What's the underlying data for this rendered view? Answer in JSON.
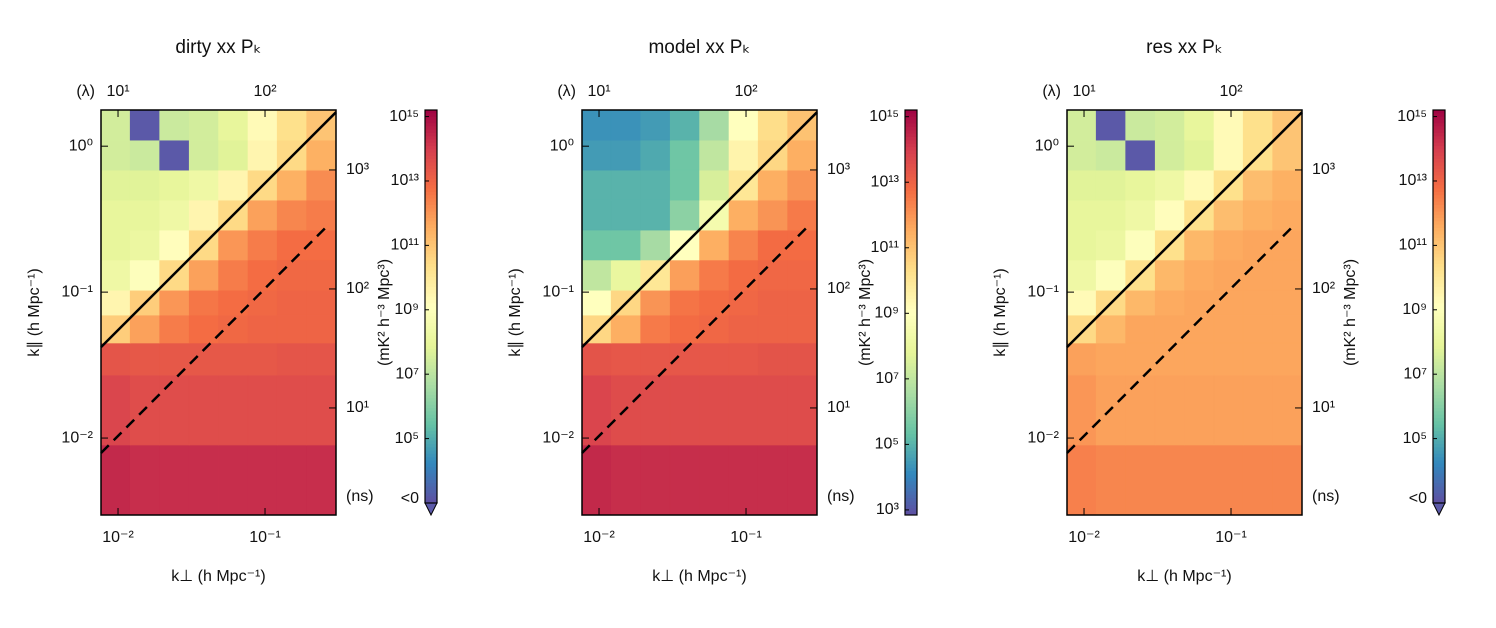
{
  "chart_data": [
    {
      "type": "heatmap",
      "title": "dirty xx Pₖ",
      "x_label": "k⊥ (h Mpc⁻¹)",
      "y_label": "k∥ (h Mpc⁻¹)",
      "log_scale": true,
      "xlim": [
        0.00766,
        0.304
      ],
      "xticks": [
        {
          "value": 0.01,
          "label": "10⁻²"
        },
        {
          "value": 0.1,
          "label": "10⁻¹"
        }
      ],
      "ylim": [
        0.00297,
        1.77
      ],
      "yticks": [
        {
          "value": 0.01,
          "label": "10⁻²"
        },
        {
          "value": 0.1,
          "label": "10⁻¹"
        },
        {
          "value": 1,
          "label": "10⁰"
        }
      ],
      "x2_label": "(λ)",
      "x2lim": [
        7.66,
        304
      ],
      "x2ticks": [
        {
          "value": 10,
          "label": "10¹"
        },
        {
          "value": 100,
          "label": "10²"
        }
      ],
      "y2_label": "(ns)",
      "y2lim": [
        1.26,
        3190
      ],
      "y2ticks": [
        {
          "value": 10,
          "label": "10¹"
        },
        {
          "value": 100,
          "label": "10²"
        },
        {
          "value": 1000,
          "label": "10³"
        }
      ],
      "x_edges": [
        0.00766,
        0.0121,
        0.0192,
        0.0305,
        0.0483,
        0.0766,
        0.121,
        0.192,
        0.304
      ],
      "y_edges": [
        0.00297,
        0.00896,
        0.027,
        0.0448,
        0.0696,
        0.103,
        0.166,
        0.266,
        0.427,
        0.685,
        1.1,
        1.77
      ],
      "values": [
        [
          250000000000000.0,
          200000000000000.0,
          200000000000000.0,
          200000000000000.0,
          200000000000000.0,
          200000000000000.0,
          200000000000000.0,
          200000000000000.0
        ],
        [
          60000000000000.0,
          40000000000000.0,
          40000000000000.0,
          40000000000000.0,
          40000000000000.0,
          40000000000000.0,
          40000000000000.0,
          40000000000000.0
        ],
        [
          25000000000000.0,
          20000000000000.0,
          20000000000000.0,
          20000000000000.0,
          20000000000000.0,
          20000000000000.0,
          25000000000000.0,
          25000000000000.0
        ],
        [
          60000000000.0,
          600000000000.0,
          3000000000000.0,
          6000000000000.0,
          8000000000000.0,
          10000000000000.0,
          10000000000000.0,
          10000000000000.0
        ],
        [
          3000000000.0,
          60000000000.0,
          1000000000000.0,
          4000000000000.0,
          6000000000000.0,
          8000000000000.0,
          10000000000000.0,
          10000000000000.0
        ],
        [
          200000000.0,
          1000000000.0,
          30000000000.0,
          600000000000.0,
          3000000000000.0,
          6000000000000.0,
          8000000000000.0,
          8000000000000.0
        ],
        [
          100000000.0,
          150000000.0,
          1500000000.0,
          30000000000.0,
          1000000000000.0,
          3000000000000.0,
          6000000000000.0,
          6000000000000.0
        ],
        [
          100000000.0,
          100000000.0,
          200000000.0,
          3000000000.0,
          30000000000.0,
          600000000000.0,
          2000000000000.0,
          3000000000000.0
        ],
        [
          60000000.0,
          60000000.0,
          100000000.0,
          200000000.0,
          3000000000.0,
          30000000000.0,
          300000000000.0,
          1500000000000.0
        ],
        [
          30000000.0,
          20000000.0,
          -100000000.0,
          30000000.0,
          60000000.0,
          3000000000.0,
          30000000000.0,
          300000000000.0
        ],
        [
          30000000.0,
          -100000000.0,
          20000000.0,
          30000000.0,
          100000000.0,
          2000000000.0,
          20000000000.0,
          100000000000.0
        ]
      ],
      "lines": [
        {
          "style": "solid",
          "color": "#000000",
          "x": [
            0.00766,
            0.304
          ],
          "y": [
            0.042,
            1.71
          ]
        },
        {
          "style": "dashed",
          "color": "#000000",
          "x": [
            0.00766,
            0.256
          ],
          "y": [
            0.0079,
            0.274
          ]
        }
      ],
      "colormap": [
        "#5e4fa2",
        "#3288bd",
        "#66c2a5",
        "#abdda4",
        "#e6f598",
        "#ffffbf",
        "#fee08b",
        "#fdae61",
        "#f46d43",
        "#d53e4f",
        "#9e0142"
      ],
      "under_color": "#5b59a8",
      "colorbar": {
        "label": "(mK² h⁻³ Mpc³)",
        "clim": [
          1000,
          1600000000000000.0
        ],
        "under_label": "<0",
        "ticks": [
          {
            "value": 100000.0,
            "label": "10⁵"
          },
          {
            "value": 10000000.0,
            "label": "10⁷"
          },
          {
            "value": 1000000000.0,
            "label": "10⁹"
          },
          {
            "value": 100000000000.0,
            "label": "10¹¹"
          },
          {
            "value": 10000000000000.0,
            "label": "10¹³"
          },
          {
            "value": 1000000000000000.0,
            "label": "10¹⁵"
          }
        ]
      }
    },
    {
      "type": "heatmap",
      "title": "model xx Pₖ",
      "x_label": "k⊥ (h Mpc⁻¹)",
      "y_label": "k∥ (h Mpc⁻¹)",
      "log_scale": true,
      "xlim": [
        0.00766,
        0.304
      ],
      "xticks": [
        {
          "value": 0.01,
          "label": "10⁻²"
        },
        {
          "value": 0.1,
          "label": "10⁻¹"
        }
      ],
      "ylim": [
        0.00297,
        1.77
      ],
      "yticks": [
        {
          "value": 0.01,
          "label": "10⁻²"
        },
        {
          "value": 0.1,
          "label": "10⁻¹"
        },
        {
          "value": 1,
          "label": "10⁰"
        }
      ],
      "x2_label": "(λ)",
      "x2lim": [
        7.66,
        304
      ],
      "x2ticks": [
        {
          "value": 10,
          "label": "10¹"
        },
        {
          "value": 100,
          "label": "10²"
        }
      ],
      "y2_label": "(ns)",
      "y2lim": [
        1.26,
        3190
      ],
      "y2ticks": [
        {
          "value": 10,
          "label": "10¹"
        },
        {
          "value": 100,
          "label": "10²"
        },
        {
          "value": 1000,
          "label": "10³"
        }
      ],
      "x_edges": [
        0.00766,
        0.0121,
        0.0192,
        0.0305,
        0.0483,
        0.0766,
        0.121,
        0.192,
        0.304
      ],
      "y_edges": [
        0.00297,
        0.00896,
        0.027,
        0.0448,
        0.0696,
        0.103,
        0.166,
        0.266,
        0.427,
        0.685,
        1.1,
        1.77
      ],
      "values": [
        [
          250000000000000.0,
          200000000000000.0,
          200000000000000.0,
          200000000000000.0,
          200000000000000.0,
          200000000000000.0,
          200000000000000.0,
          200000000000000.0
        ],
        [
          60000000000000.0,
          40000000000000.0,
          40000000000000.0,
          40000000000000.0,
          40000000000000.0,
          40000000000000.0,
          40000000000000.0,
          40000000000000.0
        ],
        [
          25000000000000.0,
          20000000000000.0,
          20000000000000.0,
          20000000000000.0,
          20000000000000.0,
          20000000000000.0,
          25000000000000.0,
          25000000000000.0
        ],
        [
          30000000000.0,
          300000000000.0,
          3000000000000.0,
          6000000000000.0,
          8000000000000.0,
          10000000000000.0,
          10000000000000.0,
          10000000000000.0
        ],
        [
          1000000000.0,
          30000000000.0,
          1000000000000.0,
          4000000000000.0,
          6000000000000.0,
          8000000000000.0,
          10000000000000.0,
          10000000000000.0
        ],
        [
          10000000.0,
          100000000.0,
          10000000000.0,
          600000000000.0,
          3000000000000.0,
          6000000000000.0,
          8000000000000.0,
          8000000000000.0
        ],
        [
          300000.0,
          300000.0,
          3000000.0,
          1000000000.0,
          300000000000.0,
          2000000000000.0,
          6000000000000.0,
          6000000000000.0
        ],
        [
          100000.0,
          100000.0,
          100000.0,
          1000000.0,
          300000000.0,
          300000000000.0,
          1000000000000.0,
          3000000000000.0
        ],
        [
          100000.0,
          100000.0,
          100000.0,
          300000.0,
          30000000.0,
          10000000000.0,
          300000000000.0,
          1000000000000.0
        ],
        [
          30000.0,
          30000.0,
          60000.0,
          300000.0,
          10000000.0,
          3000000000.0,
          30000000000.0,
          300000000000.0
        ],
        [
          20000.0,
          20000.0,
          30000.0,
          100000.0,
          3000000.0,
          1000000000.0,
          20000000000.0,
          100000000000.0
        ]
      ],
      "lines": [
        {
          "style": "solid",
          "color": "#000000",
          "x": [
            0.00766,
            0.304
          ],
          "y": [
            0.042,
            1.71
          ]
        },
        {
          "style": "dashed",
          "color": "#000000",
          "x": [
            0.00766,
            0.256
          ],
          "y": [
            0.0079,
            0.274
          ]
        }
      ],
      "colormap": [
        "#5e4fa2",
        "#3288bd",
        "#66c2a5",
        "#abdda4",
        "#e6f598",
        "#ffffbf",
        "#fee08b",
        "#fdae61",
        "#f46d43",
        "#d53e4f",
        "#9e0142"
      ],
      "under_color": "#5b59a8",
      "colorbar": {
        "label": "(mK² h⁻³ Mpc³)",
        "clim": [
          700,
          1600000000000000.0
        ],
        "ticks": [
          {
            "value": 1000,
            "label": "10³"
          },
          {
            "value": 100000.0,
            "label": "10⁵"
          },
          {
            "value": 10000000.0,
            "label": "10⁷"
          },
          {
            "value": 1000000000.0,
            "label": "10⁹"
          },
          {
            "value": 100000000000.0,
            "label": "10¹¹"
          },
          {
            "value": 10000000000000.0,
            "label": "10¹³"
          },
          {
            "value": 1000000000000000.0,
            "label": "10¹⁵"
          }
        ]
      }
    },
    {
      "type": "heatmap",
      "title": "res xx Pₖ",
      "x_label": "k⊥ (h Mpc⁻¹)",
      "y_label": "k∥ (h Mpc⁻¹)",
      "log_scale": true,
      "xlim": [
        0.00766,
        0.304
      ],
      "xticks": [
        {
          "value": 0.01,
          "label": "10⁻²"
        },
        {
          "value": 0.1,
          "label": "10⁻¹"
        }
      ],
      "ylim": [
        0.00297,
        1.77
      ],
      "yticks": [
        {
          "value": 0.01,
          "label": "10⁻²"
        },
        {
          "value": 0.1,
          "label": "10⁻¹"
        },
        {
          "value": 1,
          "label": "10⁰"
        }
      ],
      "x2_label": "(λ)",
      "x2lim": [
        7.66,
        304
      ],
      "x2ticks": [
        {
          "value": 10,
          "label": "10¹"
        },
        {
          "value": 100,
          "label": "10²"
        }
      ],
      "y2_label": "(ns)",
      "y2lim": [
        1.26,
        3190
      ],
      "y2ticks": [
        {
          "value": 10,
          "label": "10¹"
        },
        {
          "value": 100,
          "label": "10²"
        },
        {
          "value": 1000,
          "label": "10³"
        }
      ],
      "x_edges": [
        0.00766,
        0.0121,
        0.0192,
        0.0305,
        0.0483,
        0.0766,
        0.121,
        0.192,
        0.304
      ],
      "y_edges": [
        0.00297,
        0.00896,
        0.027,
        0.0448,
        0.0696,
        0.103,
        0.166,
        0.266,
        0.427,
        0.685,
        1.1,
        1.77
      ],
      "values": [
        [
          2500000000000.0,
          2000000000000.0,
          2000000000000.0,
          2000000000000.0,
          2000000000000.0,
          2000000000000.0,
          2000000000000.0,
          2000000000000.0
        ],
        [
          1000000000000.0,
          600000000000.0,
          600000000000.0,
          600000000000.0,
          600000000000.0,
          600000000000.0,
          600000000000.0,
          600000000000.0
        ],
        [
          600000000000.0,
          500000000000.0,
          500000000000.0,
          500000000000.0,
          500000000000.0,
          500000000000.0,
          500000000000.0,
          500000000000.0
        ],
        [
          30000000000.0,
          200000000000.0,
          500000000000.0,
          500000000000.0,
          500000000000.0,
          500000000000.0,
          500000000000.0,
          500000000000.0
        ],
        [
          2000000000.0,
          30000000000.0,
          200000000000.0,
          400000000000.0,
          500000000000.0,
          500000000000.0,
          500000000000.0,
          500000000000.0
        ],
        [
          200000000.0,
          1000000000.0,
          20000000000.0,
          200000000000.0,
          400000000000.0,
          500000000000.0,
          500000000000.0,
          500000000000.0
        ],
        [
          100000000.0,
          150000000.0,
          1000000000.0,
          20000000000.0,
          200000000000.0,
          400000000000.0,
          500000000000.0,
          500000000000.0
        ],
        [
          100000000.0,
          100000000.0,
          200000000.0,
          1500000000.0,
          20000000000.0,
          150000000000.0,
          300000000000.0,
          400000000000.0
        ],
        [
          60000000.0,
          60000000.0,
          100000000.0,
          200000000.0,
          2000000000.0,
          20000000000.0,
          150000000000.0,
          300000000000.0
        ],
        [
          30000000.0,
          20000000.0,
          -100000000.0,
          30000000.0,
          60000000.0,
          2000000000.0,
          20000000000.0,
          100000000000.0
        ],
        [
          30000000.0,
          -100000000.0,
          20000000.0,
          30000000.0,
          100000000.0,
          2000000000.0,
          20000000000.0,
          100000000000.0
        ]
      ],
      "lines": [
        {
          "style": "solid",
          "color": "#000000",
          "x": [
            0.00766,
            0.304
          ],
          "y": [
            0.042,
            1.71
          ]
        },
        {
          "style": "dashed",
          "color": "#000000",
          "x": [
            0.00766,
            0.256
          ],
          "y": [
            0.0079,
            0.274
          ]
        }
      ],
      "colormap": [
        "#5e4fa2",
        "#3288bd",
        "#66c2a5",
        "#abdda4",
        "#e6f598",
        "#ffffbf",
        "#fee08b",
        "#fdae61",
        "#f46d43",
        "#d53e4f",
        "#9e0142"
      ],
      "under_color": "#5b59a8",
      "colorbar": {
        "label": "(mK² h⁻³ Mpc³)",
        "clim": [
          1000,
          1600000000000000.0
        ],
        "under_label": "<0",
        "ticks": [
          {
            "value": 100000.0,
            "label": "10⁵"
          },
          {
            "value": 10000000.0,
            "label": "10⁷"
          },
          {
            "value": 1000000000.0,
            "label": "10⁹"
          },
          {
            "value": 100000000000.0,
            "label": "10¹¹"
          },
          {
            "value": 10000000000000.0,
            "label": "10¹³"
          },
          {
            "value": 1000000000000000.0,
            "label": "10¹⁵"
          }
        ]
      }
    }
  ]
}
